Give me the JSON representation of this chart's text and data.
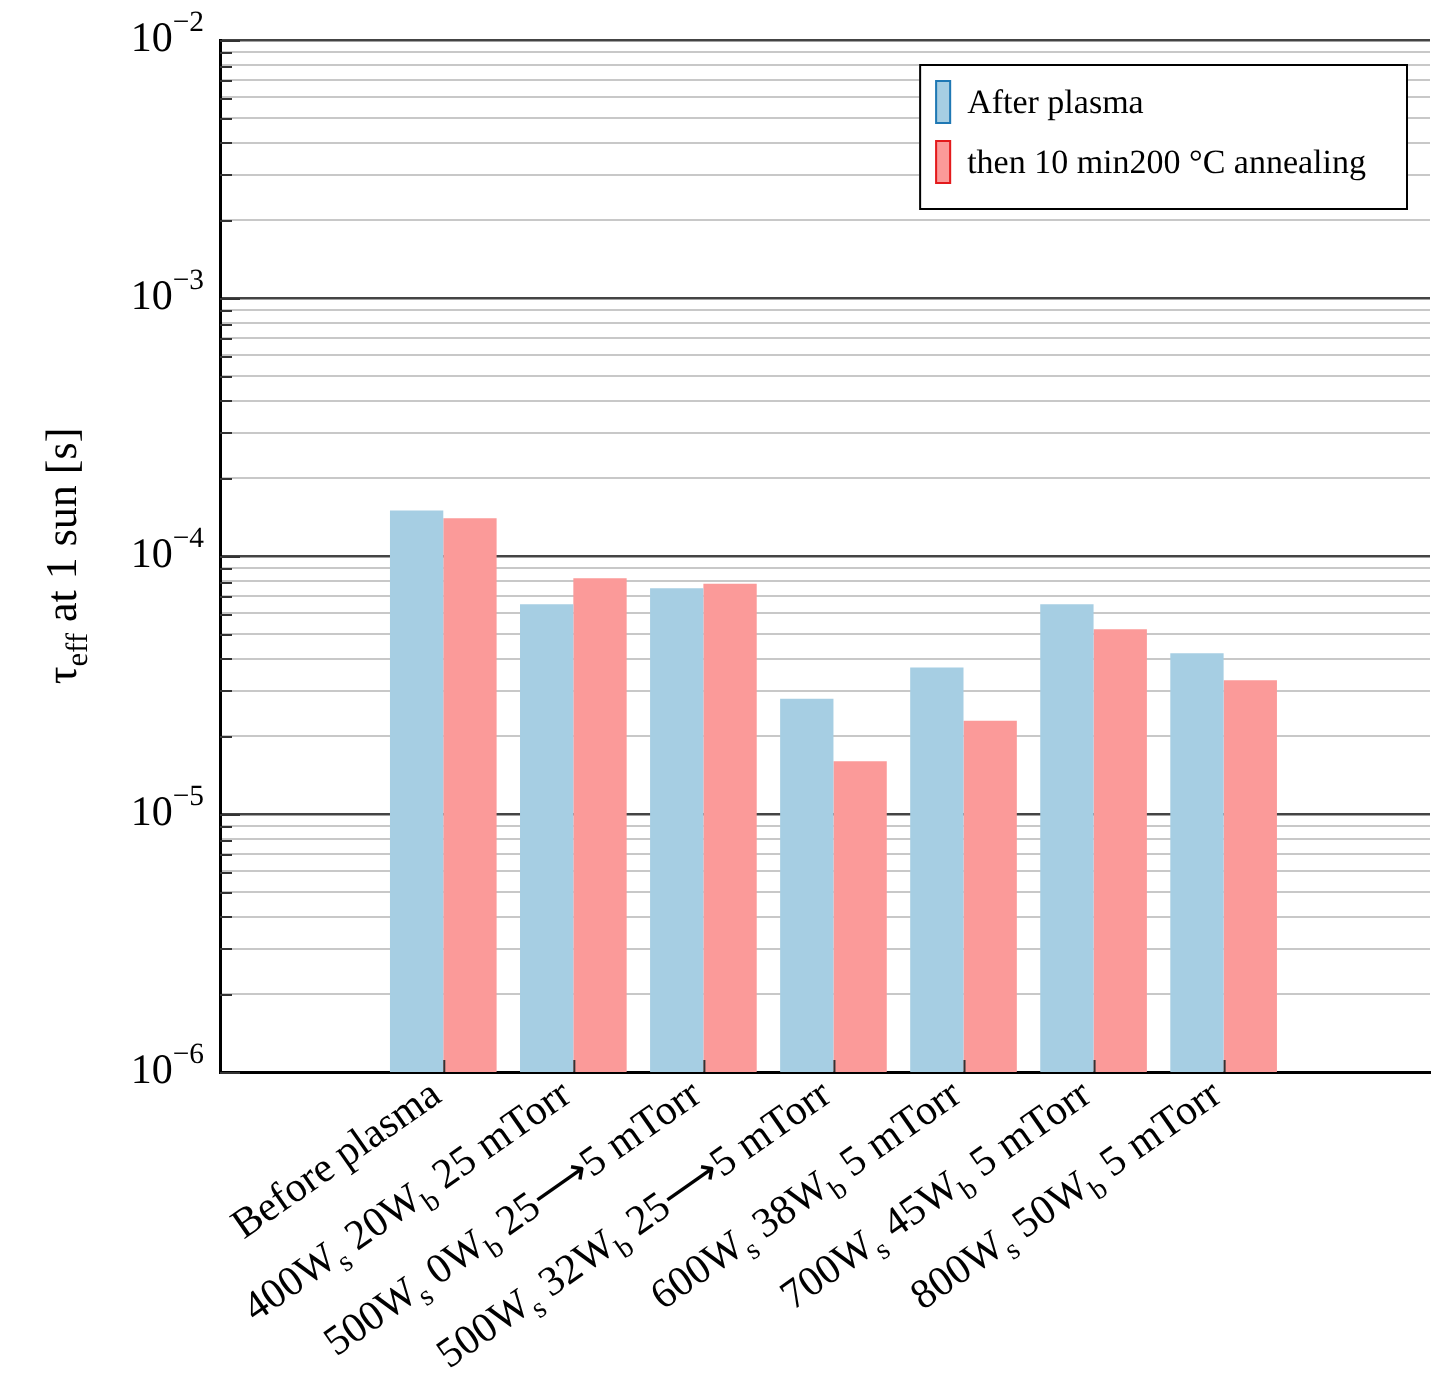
{
  "chart_data": {
    "type": "bar",
    "ylabel": "τ$_{eff}$ at 1 sun [s]",
    "categories": [
      "Before plasma",
      "400W$_{s}$ 20W$_{b}$ 25 mTorr",
      "500W$_{s}$ 0W$_{b}$ 25⟶5 mTorr",
      "500W$_{s}$ 32W$_{b}$ 25⟶5 mTorr",
      "600W$_{s}$ 38W$_{b}$ 5 mTorr",
      "700W$_{s}$ 45W$_{b}$ 5 mTorr",
      "800W$_{s}$ 50W$_{b}$ 5 mTorr"
    ],
    "series": [
      {
        "name": "After plasma",
        "color": "#a6cee3",
        "values": [
          0.00015,
          6.5e-05,
          7.5e-05,
          2.8e-05,
          3.7e-05,
          6.5e-05,
          4.2e-05
        ]
      },
      {
        "name": "then 10 min200 °C annealing",
        "color": "#fb9a99",
        "values": [
          0.00014,
          8.2e-05,
          7.8e-05,
          1.6e-05,
          2.3e-05,
          5.2e-05,
          3.3e-05
        ]
      }
    ],
    "log": true,
    "ylim": [
      1e-06,
      0.01
    ],
    "yticks": [
      {
        "value": 1e-06,
        "label": "10$^{−6}$"
      },
      {
        "value": 1e-05,
        "label": "10$^{−5}$"
      },
      {
        "value": 0.0001,
        "label": "10$^{−4}$"
      },
      {
        "value": 0.001,
        "label": "10$^{−3}$"
      },
      {
        "value": 0.01,
        "label": "10$^{−2}$"
      }
    ],
    "grid": true,
    "legend": "top right"
  }
}
